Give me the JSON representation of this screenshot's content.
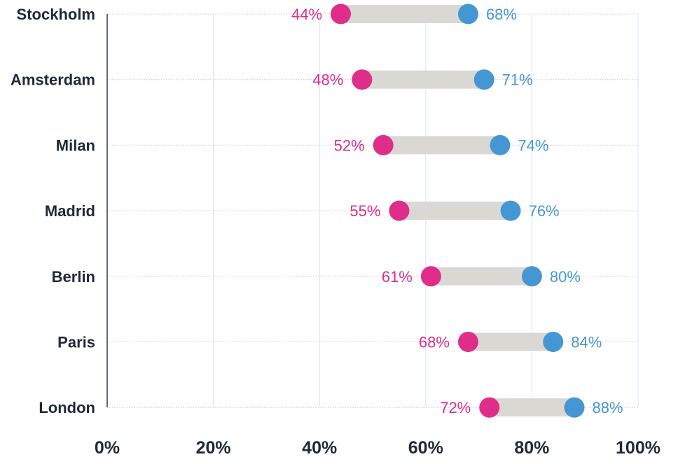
{
  "chart_data": {
    "type": "dumbbell",
    "categories": [
      "Stockholm",
      "Amsterdam",
      "Milan",
      "Madrid",
      "Berlin",
      "Paris",
      "London"
    ],
    "series": [
      {
        "values": [
          44,
          48,
          52,
          55,
          61,
          68,
          72
        ],
        "labels": [
          "44%",
          "48%",
          "52%",
          "55%",
          "61%",
          "68%",
          "72%"
        ]
      },
      {
        "values": [
          68,
          71,
          74,
          76,
          80,
          84,
          88
        ],
        "labels": [
          "68%",
          "71%",
          "74%",
          "76%",
          "80%",
          "84%",
          "88%"
        ]
      }
    ],
    "x_ticks": [
      0,
      20,
      40,
      60,
      80,
      100
    ],
    "x_tick_labels": [
      "0%",
      "20%",
      "40%",
      "60%",
      "80%",
      "100%"
    ],
    "xlim": [
      0,
      100
    ],
    "grid": true,
    "title": "",
    "xlabel": "",
    "ylabel": ""
  },
  "colors": {
    "low": "#de2e8a",
    "high": "#4597d3",
    "connector": "#d9d8d3",
    "vertical_grid": "#d6e4ee",
    "row_grid": "#c9c9c9",
    "axis": "#2f3b4a",
    "text": "#1e2a3a"
  }
}
